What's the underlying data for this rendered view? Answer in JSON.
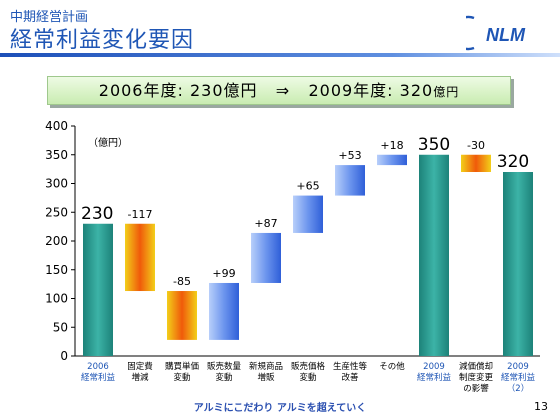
{
  "header": {
    "subtitle": "中期経営計画",
    "title": "経常利益変化要因",
    "logo_text": "NLM"
  },
  "banner": {
    "left": "2006年度: 230億円",
    "arrow": "⇒",
    "right_prefix": "2009年度: 320",
    "right_unit": "億円"
  },
  "footer": {
    "slogan": "アルミにこだわり アルミを超えていく",
    "page_number": "13"
  },
  "colors": {
    "total_bar": "#2a9d92",
    "increase_bar": "#5a87ea",
    "decrease_bar": "#f05a0a",
    "blue_text": "#1f56b5"
  },
  "chart_data": {
    "type": "bar",
    "subtype": "waterfall",
    "unit_label": "（億円）",
    "ylim": [
      0,
      400
    ],
    "yticks": [
      0,
      50,
      100,
      150,
      200,
      250,
      300,
      350,
      400
    ],
    "grid": false,
    "items": [
      {
        "label": [
          "2006",
          "経常利益"
        ],
        "kind": "total",
        "start": 0,
        "end": 230,
        "value_label": "230",
        "label_color": "blue"
      },
      {
        "label": [
          "固定費",
          "増減"
        ],
        "kind": "decrease",
        "start": 230,
        "end": 113,
        "value_label": "-117",
        "label_color": "black"
      },
      {
        "label": [
          "購買単価",
          "変動"
        ],
        "kind": "decrease",
        "start": 113,
        "end": 28,
        "value_label": "-85",
        "label_color": "black"
      },
      {
        "label": [
          "販売数量",
          "変動"
        ],
        "kind": "increase",
        "start": 28,
        "end": 127,
        "value_label": "+99",
        "label_color": "black"
      },
      {
        "label": [
          "新規商品",
          "増販"
        ],
        "kind": "increase",
        "start": 127,
        "end": 214,
        "value_label": "+87",
        "label_color": "black"
      },
      {
        "label": [
          "販売価格",
          "変動"
        ],
        "kind": "increase",
        "start": 214,
        "end": 279,
        "value_label": "+65",
        "label_color": "black"
      },
      {
        "label": [
          "生産性等",
          "改善"
        ],
        "kind": "increase",
        "start": 279,
        "end": 332,
        "value_label": "+53",
        "label_color": "black"
      },
      {
        "label": [
          "その他"
        ],
        "kind": "increase",
        "start": 332,
        "end": 350,
        "value_label": "+18",
        "label_color": "black"
      },
      {
        "label": [
          "2009",
          "経常利益"
        ],
        "kind": "total",
        "start": 0,
        "end": 350,
        "value_label": "350",
        "label_color": "blue"
      },
      {
        "label": [
          "減価償却",
          "制度変更",
          "の影響"
        ],
        "kind": "decrease",
        "start": 350,
        "end": 320,
        "value_label": "-30",
        "label_color": "black"
      },
      {
        "label": [
          "2009",
          "経常利益",
          "（2）"
        ],
        "kind": "total",
        "start": 0,
        "end": 320,
        "value_label": "320",
        "label_color": "blue"
      }
    ]
  }
}
